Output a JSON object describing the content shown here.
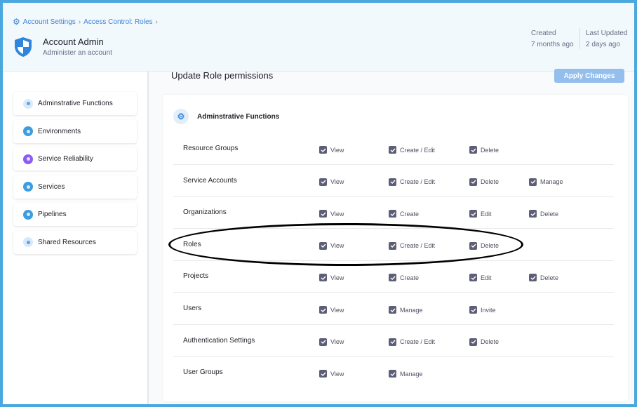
{
  "breadcrumb": [
    "Account Settings",
    "Access Control: Roles"
  ],
  "header": {
    "title": "Account Admin",
    "subtitle": "Administer an account",
    "created_label": "Created",
    "created_value": "7 months ago",
    "updated_label": "Last Updated",
    "updated_value": "2 days ago"
  },
  "sidebar": {
    "items": [
      {
        "label": "Adminstrative Functions",
        "color": "#dbeafa",
        "icon": "gear-icon"
      },
      {
        "label": "Environments",
        "color": "#3d9de0",
        "icon": "environment-icon"
      },
      {
        "label": "Service Reliability",
        "color": "#8b5cf6",
        "icon": "service-reliability-icon"
      },
      {
        "label": "Services",
        "color": "#3d9de0",
        "icon": "services-icon"
      },
      {
        "label": "Pipelines",
        "color": "#3d9de0",
        "icon": "pipelines-icon"
      },
      {
        "label": "Shared Resources",
        "color": "#d6e8fa",
        "icon": "shared-resources-icon"
      }
    ]
  },
  "main": {
    "title": "Update Role permissions",
    "apply_label": "Apply Changes",
    "section_title": "Adminstrative Functions",
    "rows": [
      {
        "label": "Resource Groups",
        "perms": [
          "View",
          "Create / Edit",
          "Delete"
        ]
      },
      {
        "label": "Service Accounts",
        "perms": [
          "View",
          "Create / Edit",
          "Delete",
          "Manage"
        ]
      },
      {
        "label": "Organizations",
        "perms": [
          "View",
          "Create",
          "Edit",
          "Delete"
        ]
      },
      {
        "label": "Roles",
        "perms": [
          "View",
          "Create / Edit",
          "Delete"
        ]
      },
      {
        "label": "Projects",
        "perms": [
          "View",
          "Create",
          "Edit",
          "Delete"
        ]
      },
      {
        "label": "Users",
        "perms": [
          "View",
          "Manage",
          "Invite"
        ]
      },
      {
        "label": "Authentication Settings",
        "perms": [
          "View",
          "Create / Edit",
          "Delete"
        ]
      },
      {
        "label": "User Groups",
        "perms": [
          "View",
          "Manage"
        ]
      }
    ]
  }
}
